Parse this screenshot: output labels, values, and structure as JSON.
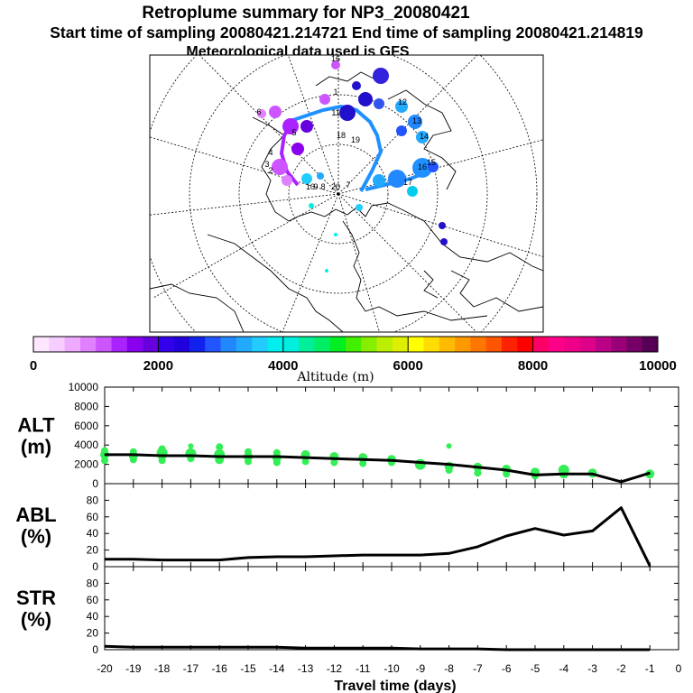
{
  "titles": {
    "line1": "Retroplume summary for NP3_20080421",
    "line2": "Start time of sampling 20080421.214721     End time of sampling 20080421.214819",
    "line3": "Meteorological data used is GFS"
  },
  "colorbar": {
    "label": "Altitude (m)",
    "tick_labels": [
      "0",
      "2000",
      "4000",
      "6000",
      "8000",
      "10000"
    ],
    "colors": [
      "#ffe6ff",
      "#f7ccff",
      "#eeaaff",
      "#e080ff",
      "#cc55ff",
      "#aa22ff",
      "#8800ee",
      "#6600dd",
      "#3300ee",
      "#2200dd",
      "#1122ee",
      "#2255ff",
      "#2288ff",
      "#22aaff",
      "#22ccff",
      "#00eeee",
      "#00eedd",
      "#00ee99",
      "#00ee66",
      "#00ee22",
      "#44ee00",
      "#88ee00",
      "#bbee00",
      "#ddee00",
      "#ffff00",
      "#ffdd00",
      "#ffbb00",
      "#ff9900",
      "#ff7700",
      "#ff5500",
      "#ff2200",
      "#ff0000",
      "#ff0066",
      "#ff0088",
      "#ee0088",
      "#dd0088",
      "#bb0088",
      "#990077",
      "#770066",
      "#550055"
    ]
  },
  "map": {
    "labels": [
      "16",
      "12",
      "13",
      "14",
      "15",
      "16",
      "17",
      "18",
      "19",
      "20",
      "7",
      "8",
      "9",
      "10",
      "11",
      "1",
      "2",
      "3",
      "4",
      "5",
      "6"
    ]
  },
  "chart_data": [
    {
      "type": "line",
      "panel": "ALT",
      "ylabel": "ALT",
      "yunit": "(m)",
      "xlabel": "Travel time (days)",
      "xlim": [
        -20,
        0
      ],
      "ylim": [
        0,
        10000
      ],
      "yticks": [
        0,
        2000,
        4000,
        6000,
        8000,
        10000
      ],
      "xtick_labels": [
        "-20",
        "-19",
        "-18",
        "-17",
        "-16",
        "-15",
        "-14",
        "-13",
        "-12",
        "-11",
        "-10",
        "-9",
        "-8",
        "-7",
        "-6",
        "-5",
        "-4",
        "-3",
        "-2",
        "-1",
        "0"
      ],
      "series": [
        {
          "name": "mean altitude",
          "color": "#000000",
          "x": [
            -20,
            -19,
            -18,
            -17,
            -16,
            -15,
            -14,
            -13,
            -12,
            -11,
            -10,
            -9,
            -8,
            -7,
            -6,
            -5,
            -4,
            -3,
            -2,
            -1
          ],
          "y": [
            3000,
            3000,
            2900,
            2900,
            2800,
            2800,
            2800,
            2700,
            2600,
            2500,
            2400,
            2200,
            2000,
            1700,
            1400,
            900,
            1000,
            1000,
            200,
            1100
          ]
        }
      ],
      "scatter": {
        "name": "cluster altitudes",
        "color": "#33ee55",
        "x": [
          -20,
          -20,
          -20,
          -19,
          -19,
          -19,
          -18,
          -18,
          -18,
          -18,
          -17,
          -17,
          -17,
          -16,
          -16,
          -16,
          -15,
          -15,
          -15,
          -14,
          -14,
          -14,
          -13,
          -13,
          -12,
          -12,
          -11,
          -11,
          -10,
          -10,
          -9,
          -8,
          -8,
          -8,
          -7,
          -7,
          -6,
          -6,
          -5,
          -5,
          -4,
          -4,
          -3,
          -3,
          -1
        ],
        "y": [
          3400,
          3000,
          2400,
          3300,
          2900,
          2500,
          3600,
          3200,
          2900,
          2400,
          3900,
          3100,
          2600,
          3800,
          3000,
          2500,
          3300,
          2800,
          2300,
          3200,
          2700,
          2200,
          3000,
          2300,
          2800,
          2200,
          2700,
          2100,
          2500,
          2200,
          2000,
          3900,
          1800,
          1400,
          1700,
          1100,
          1500,
          1000,
          1200,
          800,
          1400,
          1000,
          1100,
          1000,
          1000
        ],
        "r": [
          4,
          5,
          4,
          4,
          5,
          4,
          4,
          6,
          5,
          4,
          3,
          6,
          4,
          4,
          6,
          5,
          4,
          5,
          4,
          4,
          5,
          4,
          5,
          4,
          5,
          4,
          5,
          4,
          5,
          4,
          6,
          3,
          5,
          4,
          5,
          4,
          5,
          4,
          5,
          4,
          6,
          5,
          5,
          4,
          5
        ]
      }
    },
    {
      "type": "line",
      "panel": "ABL",
      "ylabel": "ABL",
      "yunit": "(%)",
      "xlim": [
        -20,
        0
      ],
      "ylim": [
        0,
        100
      ],
      "yticks": [
        0,
        20,
        40,
        60,
        80
      ],
      "series": [
        {
          "name": "ABL fraction",
          "color": "#000000",
          "x": [
            -20,
            -19,
            -18,
            -17,
            -16,
            -15,
            -14,
            -13,
            -12,
            -11,
            -10,
            -9,
            -8,
            -7,
            -6,
            -5,
            -4,
            -3,
            -2,
            -1
          ],
          "y": [
            9,
            9,
            8,
            8,
            8,
            11,
            12,
            12,
            13,
            14,
            14,
            14,
            16,
            24,
            37,
            46,
            38,
            43,
            71,
            1
          ]
        }
      ]
    },
    {
      "type": "line",
      "panel": "STR",
      "ylabel": "STR",
      "yunit": "(%)",
      "xlim": [
        -20,
        0
      ],
      "ylim": [
        0,
        100
      ],
      "yticks": [
        0,
        20,
        40,
        60,
        80
      ],
      "series": [
        {
          "name": "stratospheric fraction",
          "color": "#000000",
          "x": [
            -20,
            -19,
            -18,
            -17,
            -16,
            -15,
            -14,
            -13,
            -12,
            -11,
            -10,
            -9,
            -8,
            -7,
            -6,
            -5,
            -4,
            -3,
            -2,
            -1
          ],
          "y": [
            4,
            3,
            3,
            3,
            3,
            3,
            3,
            2,
            2,
            2,
            2,
            1,
            1,
            1,
            0,
            0,
            0,
            0,
            0,
            0
          ]
        }
      ]
    }
  ]
}
